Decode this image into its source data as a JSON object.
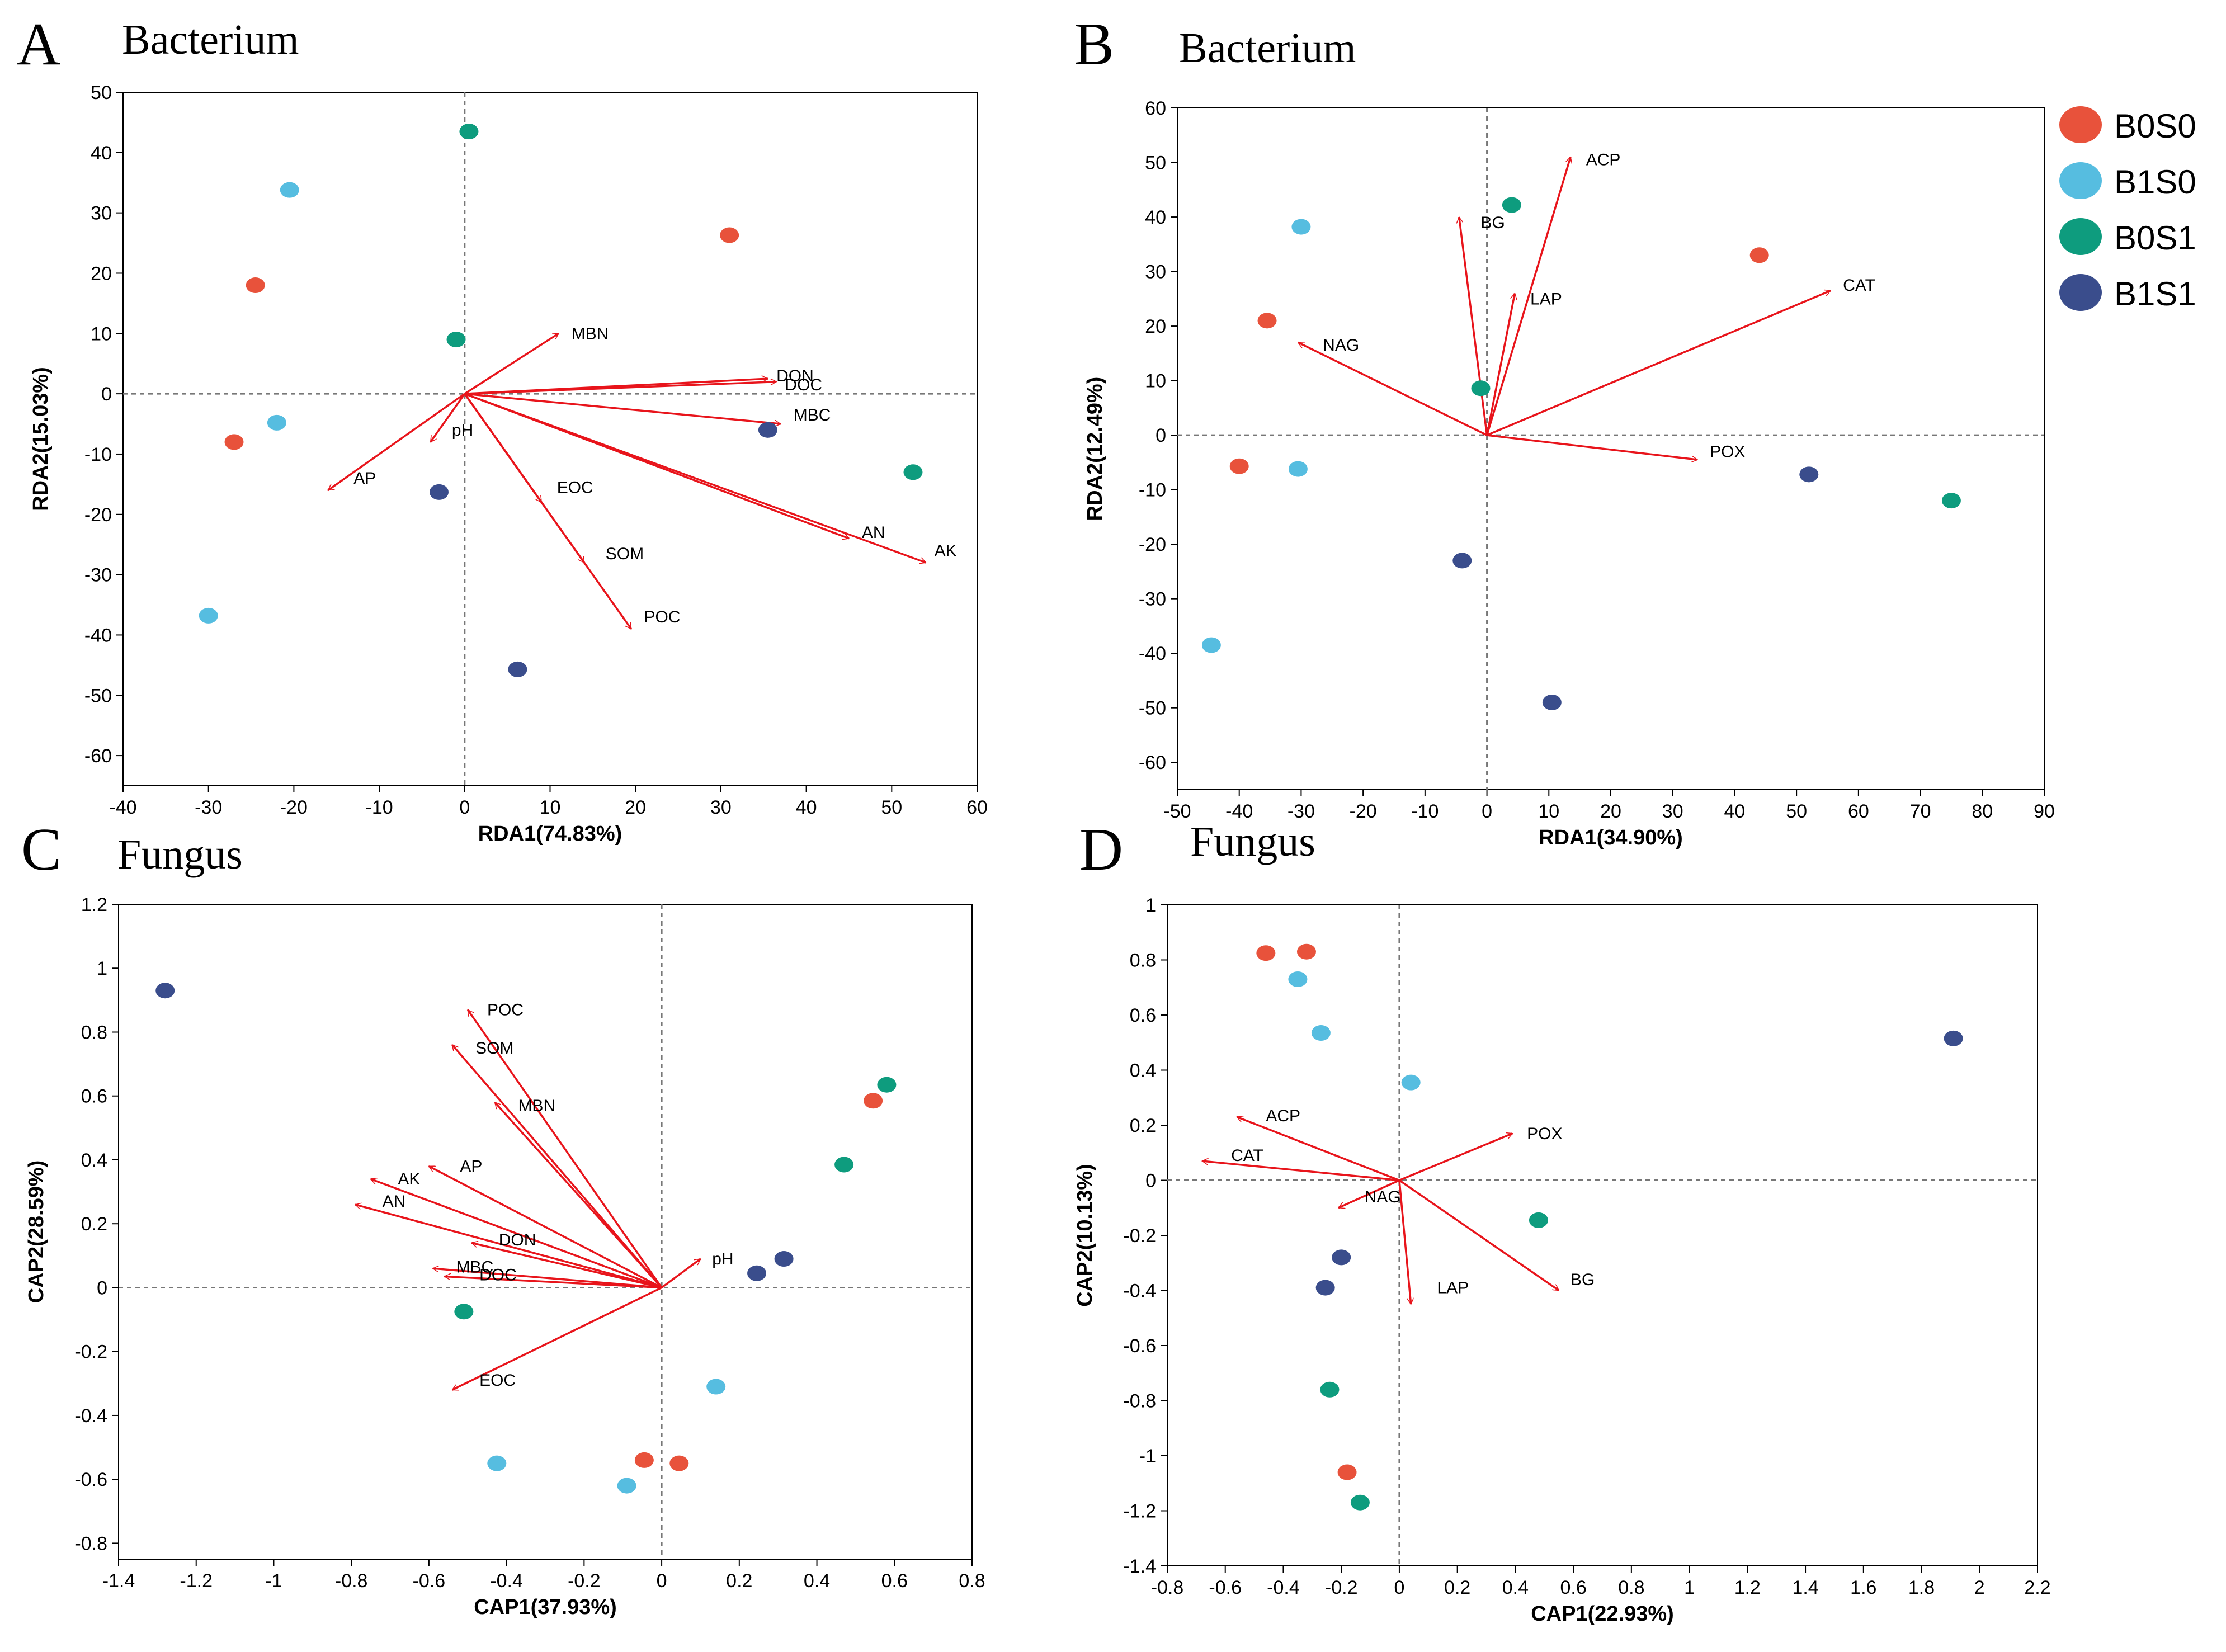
{
  "colors": {
    "B0S0": "#e8523b",
    "B1S0": "#56bde0",
    "B0S1": "#0e9c7e",
    "B1S1": "#3a4d8c",
    "arrow": "#e8141b",
    "axis": "#000000",
    "refline": "#777777"
  },
  "legend": {
    "items": [
      {
        "label": "B0S0",
        "key": "B0S0"
      },
      {
        "label": "B1S0",
        "key": "B1S0"
      },
      {
        "label": "B0S1",
        "key": "B0S1"
      },
      {
        "label": "B1S1",
        "key": "B1S1"
      }
    ]
  },
  "chart_data": [
    {
      "id": "A",
      "type": "scatter",
      "panel_letter": "A",
      "title": "Bacterium",
      "xlabel": "RDA1(74.83%)",
      "ylabel": "RDA2(15.03%)",
      "xlim": [
        -40,
        60
      ],
      "ylim": [
        -65,
        50
      ],
      "xticks": [
        -40,
        -30,
        -20,
        -10,
        0,
        10,
        20,
        30,
        40,
        50,
        60
      ],
      "yticks": [
        50,
        40,
        30,
        20,
        10,
        0,
        -10,
        -20,
        -30,
        -40,
        -50,
        -60
      ],
      "points": [
        {
          "group": "B0S0",
          "x": -24.5,
          "y": 18
        },
        {
          "group": "B0S0",
          "x": -27,
          "y": -8
        },
        {
          "group": "B0S0",
          "x": 31,
          "y": 26.3
        },
        {
          "group": "B1S0",
          "x": -20.5,
          "y": 33.8
        },
        {
          "group": "B1S0",
          "x": -22,
          "y": -4.8
        },
        {
          "group": "B1S0",
          "x": -30,
          "y": -36.8
        },
        {
          "group": "B0S1",
          "x": 0.5,
          "y": 43.5
        },
        {
          "group": "B0S1",
          "x": -1,
          "y": 9
        },
        {
          "group": "B0S1",
          "x": 52.5,
          "y": -13
        },
        {
          "group": "B1S1",
          "x": 35.5,
          "y": -6
        },
        {
          "group": "B1S1",
          "x": -3,
          "y": -16.3
        },
        {
          "group": "B1S1",
          "x": 6.2,
          "y": -45.7
        }
      ],
      "arrows": [
        {
          "label": "MBN",
          "x": 11,
          "y": 10,
          "lx": 12.5,
          "ly": 10
        },
        {
          "label": "DON",
          "x": 35.5,
          "y": 2.5,
          "lx": 36.5,
          "ly": 3
        },
        {
          "label": "DOC",
          "x": 36.5,
          "y": 2,
          "lx": 37.5,
          "ly": 1.5
        },
        {
          "label": "MBC",
          "x": 37,
          "y": -5,
          "lx": 38.5,
          "ly": -3.5
        },
        {
          "label": "pH",
          "x": -4,
          "y": -8,
          "lx": -1.5,
          "ly": -6
        },
        {
          "label": "AP",
          "x": -16,
          "y": -16,
          "lx": -13,
          "ly": -14
        },
        {
          "label": "EOC",
          "x": 9,
          "y": -18,
          "lx": 10.8,
          "ly": -15.5
        },
        {
          "label": "SOM",
          "x": 14,
          "y": -28,
          "lx": 16.5,
          "ly": -26.5
        },
        {
          "label": "AN",
          "x": 45,
          "y": -24,
          "lx": 46.5,
          "ly": -23
        },
        {
          "label": "AK",
          "x": 54,
          "y": -28,
          "lx": 55,
          "ly": -26
        },
        {
          "label": "POC",
          "x": 19.5,
          "y": -39,
          "lx": 21,
          "ly": -37
        }
      ]
    },
    {
      "id": "B",
      "type": "scatter",
      "panel_letter": "B",
      "title": "Bacterium",
      "xlabel": "RDA1(34.90%)",
      "ylabel": "RDA2(12.49%)",
      "xlim": [
        -50,
        90
      ],
      "ylim": [
        -65,
        60
      ],
      "xticks": [
        -50,
        -40,
        -30,
        -20,
        -10,
        0,
        10,
        20,
        30,
        40,
        50,
        60,
        70,
        80,
        90
      ],
      "yticks": [
        60,
        50,
        40,
        30,
        20,
        10,
        0,
        -10,
        -20,
        -30,
        -40,
        -50,
        -60
      ],
      "points": [
        {
          "group": "B0S0",
          "x": -35.5,
          "y": 21
        },
        {
          "group": "B0S0",
          "x": -40,
          "y": -5.7
        },
        {
          "group": "B0S0",
          "x": 44,
          "y": 33
        },
        {
          "group": "B1S0",
          "x": -30,
          "y": 38.2
        },
        {
          "group": "B1S0",
          "x": -30.5,
          "y": -6.2
        },
        {
          "group": "B1S0",
          "x": -44.5,
          "y": -38.5
        },
        {
          "group": "B0S1",
          "x": 4,
          "y": 42.2
        },
        {
          "group": "B0S1",
          "x": -1,
          "y": 8.6
        },
        {
          "group": "B0S1",
          "x": 75,
          "y": -12
        },
        {
          "group": "B1S1",
          "x": 52,
          "y": -7.2
        },
        {
          "group": "B1S1",
          "x": -4,
          "y": -23
        },
        {
          "group": "B1S1",
          "x": 10.5,
          "y": -49
        }
      ],
      "arrows": [
        {
          "label": "ACP",
          "x": 13.5,
          "y": 51,
          "lx": 16,
          "ly": 50.5
        },
        {
          "label": "BG",
          "x": -4.5,
          "y": 40,
          "lx": -1,
          "ly": 39
        },
        {
          "label": "LAP",
          "x": 4.5,
          "y": 26,
          "lx": 7,
          "ly": 25
        },
        {
          "label": "NAG",
          "x": -30.5,
          "y": 17,
          "lx": -26.5,
          "ly": 16.5
        },
        {
          "label": "CAT",
          "x": 55.5,
          "y": 26.5,
          "lx": 57.5,
          "ly": 27.5
        },
        {
          "label": "POX",
          "x": 34,
          "y": -4.5,
          "lx": 36,
          "ly": -3
        }
      ]
    },
    {
      "id": "C",
      "type": "scatter",
      "panel_letter": "C",
      "title": "Fungus",
      "xlabel": "CAP1(37.93%)",
      "ylabel": "CAP2(28.59%)",
      "xlim": [
        -1.4,
        0.8
      ],
      "ylim": [
        -0.85,
        1.2
      ],
      "xticks": [
        -1.4,
        -1.2,
        -1,
        -0.8,
        -0.6,
        -0.4,
        -0.2,
        0,
        0.2,
        0.4,
        0.6,
        0.8
      ],
      "yticks": [
        1.2,
        1,
        0.8,
        0.6,
        0.4,
        0.2,
        0,
        -0.2,
        -0.4,
        -0.6,
        -0.8
      ],
      "points": [
        {
          "group": "B1S1",
          "x": -1.28,
          "y": 0.93
        },
        {
          "group": "B0S1",
          "x": 0.58,
          "y": 0.635
        },
        {
          "group": "B0S0",
          "x": 0.545,
          "y": 0.585
        },
        {
          "group": "B0S1",
          "x": 0.47,
          "y": 0.385
        },
        {
          "group": "B1S1",
          "x": 0.315,
          "y": 0.09
        },
        {
          "group": "B1S1",
          "x": 0.245,
          "y": 0.045
        },
        {
          "group": "B0S1",
          "x": -0.51,
          "y": -0.075
        },
        {
          "group": "B1S0",
          "x": 0.14,
          "y": -0.31
        },
        {
          "group": "B1S0",
          "x": -0.425,
          "y": -0.55
        },
        {
          "group": "B0S0",
          "x": -0.045,
          "y": -0.54
        },
        {
          "group": "B0S0",
          "x": 0.045,
          "y": -0.55
        },
        {
          "group": "B1S0",
          "x": -0.09,
          "y": -0.62
        }
      ],
      "arrows": [
        {
          "label": "POC",
          "x": -0.5,
          "y": 0.87,
          "lx": -0.45,
          "ly": 0.87
        },
        {
          "label": "SOM",
          "x": -0.54,
          "y": 0.76,
          "lx": -0.48,
          "ly": 0.75
        },
        {
          "label": "MBN",
          "x": -0.43,
          "y": 0.58,
          "lx": -0.37,
          "ly": 0.57
        },
        {
          "label": "AP",
          "x": -0.6,
          "y": 0.38,
          "lx": -0.52,
          "ly": 0.38
        },
        {
          "label": "AK",
          "x": -0.75,
          "y": 0.34,
          "lx": -0.68,
          "ly": 0.34
        },
        {
          "label": "AN",
          "x": -0.79,
          "y": 0.26,
          "lx": -0.72,
          "ly": 0.27
        },
        {
          "label": "DON",
          "x": -0.49,
          "y": 0.14,
          "lx": -0.42,
          "ly": 0.15
        },
        {
          "label": "MBC",
          "x": -0.59,
          "y": 0.06,
          "lx": -0.53,
          "ly": 0.065
        },
        {
          "label": "DOC",
          "x": -0.56,
          "y": 0.035,
          "lx": -0.47,
          "ly": 0.04
        },
        {
          "label": "EOC",
          "x": -0.54,
          "y": -0.32,
          "lx": -0.47,
          "ly": -0.29
        },
        {
          "label": "pH",
          "x": 0.1,
          "y": 0.09,
          "lx": 0.13,
          "ly": 0.09
        }
      ]
    },
    {
      "id": "D",
      "type": "scatter",
      "panel_letter": "D",
      "title": "Fungus",
      "xlabel": "CAP1(22.93%)",
      "ylabel": "CAP2(10.13%)",
      "xlim": [
        -0.8,
        2.2
      ],
      "ylim": [
        -1.4,
        1
      ],
      "xticks": [
        -0.8,
        -0.6,
        -0.4,
        -0.2,
        0,
        0.2,
        0.4,
        0.6,
        0.8,
        1,
        1.2,
        1.4,
        1.6,
        1.8,
        2,
        2.2
      ],
      "yticks": [
        1,
        0.8,
        0.6,
        0.4,
        0.2,
        0,
        -0.2,
        -0.4,
        -0.6,
        -0.8,
        -1,
        -1.2,
        -1.4
      ],
      "points": [
        {
          "group": "B0S0",
          "x": -0.46,
          "y": 0.825
        },
        {
          "group": "B0S0",
          "x": -0.32,
          "y": 0.83
        },
        {
          "group": "B1S0",
          "x": -0.35,
          "y": 0.73
        },
        {
          "group": "B1S0",
          "x": -0.27,
          "y": 0.535
        },
        {
          "group": "B1S0",
          "x": 0.04,
          "y": 0.355
        },
        {
          "group": "B1S1",
          "x": 1.91,
          "y": 0.515
        },
        {
          "group": "B0S1",
          "x": 0.48,
          "y": -0.145
        },
        {
          "group": "B1S1",
          "x": -0.2,
          "y": -0.28
        },
        {
          "group": "B1S1",
          "x": -0.255,
          "y": -0.39
        },
        {
          "group": "B0S1",
          "x": -0.24,
          "y": -0.76
        },
        {
          "group": "B0S0",
          "x": -0.18,
          "y": -1.06
        },
        {
          "group": "B0S1",
          "x": -0.135,
          "y": -1.17
        }
      ],
      "arrows": [
        {
          "label": "ACP",
          "x": -0.56,
          "y": 0.23,
          "lx": -0.46,
          "ly": 0.235
        },
        {
          "label": "CAT",
          "x": -0.68,
          "y": 0.07,
          "lx": -0.58,
          "ly": 0.09
        },
        {
          "label": "POX",
          "x": 0.39,
          "y": 0.17,
          "lx": 0.44,
          "ly": 0.17
        },
        {
          "label": "NAG",
          "x": -0.21,
          "y": -0.1,
          "lx": -0.12,
          "ly": -0.06
        },
        {
          "label": "LAP",
          "x": 0.04,
          "y": -0.45,
          "lx": 0.13,
          "ly": -0.39
        },
        {
          "label": "BG",
          "x": 0.55,
          "y": -0.4,
          "lx": 0.59,
          "ly": -0.36
        }
      ]
    }
  ]
}
